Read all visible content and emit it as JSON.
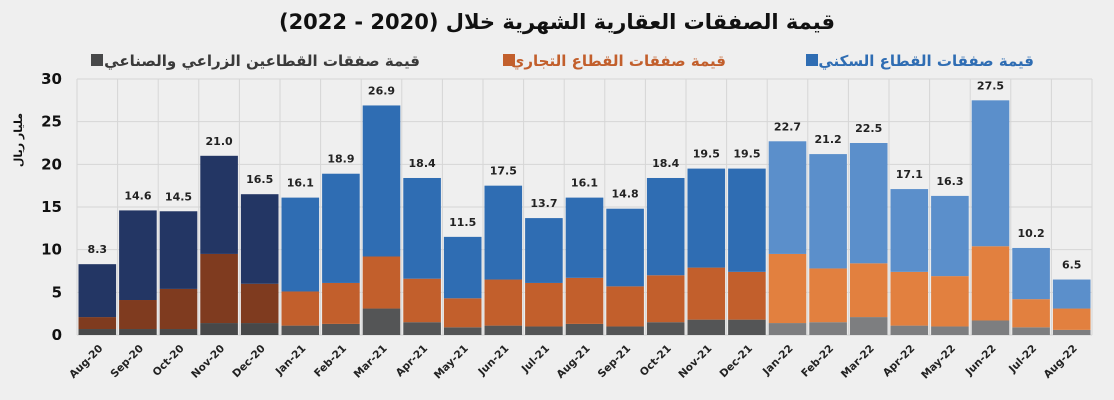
{
  "chart_data": {
    "type": "bar",
    "stacked": true,
    "title": "قيمة الصفقات العقارية الشهرية خلال (2020 - 2022)",
    "ylabel": "مليار ريال",
    "xlabel": "",
    "ylim": [
      0,
      30
    ],
    "yticks": [
      0,
      5,
      10,
      15,
      20,
      25,
      30
    ],
    "grid": true,
    "legend_position": "top",
    "categories": [
      "Aug-20",
      "Sep-20",
      "Oct-20",
      "Nov-20",
      "Dec-20",
      "Jan-21",
      "Feb-21",
      "Mar-21",
      "Apr-21",
      "May-21",
      "Jun-21",
      "Jul-21",
      "Aug-21",
      "Sep-21",
      "Oct-21",
      "Nov-21",
      "Dec-21",
      "Jan-22",
      "Feb-22",
      "Mar-22",
      "Apr-22",
      "May-22",
      "Jun-22",
      "Jul-22",
      "Aug-22"
    ],
    "totals": [
      "8.3",
      "14.6",
      "14.5",
      "21.0",
      "16.5",
      "16.1",
      "18.9",
      "26.9",
      "18.4",
      "11.5",
      "17.5",
      "13.7",
      "16.1",
      "14.8",
      "18.4",
      "19.5",
      "19.5",
      "22.7",
      "21.2",
      "22.5",
      "17.1",
      "16.3",
      "27.5",
      "10.2",
      "6.5"
    ],
    "series": [
      {
        "name": "قيمة صفقات القطاعين الزراعي والصناعي",
        "key": "agri_industrial",
        "values": [
          0.7,
          0.7,
          0.7,
          1.4,
          1.4,
          1.1,
          1.3,
          3.1,
          1.5,
          0.9,
          1.1,
          1.0,
          1.3,
          1.0,
          1.5,
          1.8,
          1.8,
          1.4,
          1.5,
          2.1,
          1.1,
          1.0,
          1.7,
          0.9,
          0.6
        ],
        "colors_by_year": {
          "2020": "#474849",
          "2021": "#545556",
          "2022": "#7d7e80"
        }
      },
      {
        "name": "قيمة صفقات القطاع التجاري",
        "key": "commercial",
        "values": [
          1.4,
          3.4,
          4.7,
          8.1,
          4.6,
          4.0,
          4.8,
          6.1,
          5.1,
          3.4,
          5.4,
          5.1,
          5.4,
          4.7,
          5.5,
          6.1,
          5.6,
          8.1,
          6.3,
          6.3,
          6.3,
          5.9,
          8.7,
          3.3,
          2.5
        ],
        "colors_by_year": {
          "2020": "#7f3b1f",
          "2021": "#c25f2c",
          "2022": "#e2803f"
        }
      },
      {
        "name": "قيمة صفقات القطاع السكني",
        "key": "residential",
        "values": [
          6.2,
          10.5,
          9.1,
          11.5,
          10.5,
          11.0,
          12.8,
          17.7,
          11.8,
          7.2,
          11.0,
          7.6,
          9.4,
          9.1,
          11.4,
          11.6,
          12.1,
          13.2,
          13.4,
          14.1,
          9.7,
          9.4,
          17.1,
          6.0,
          3.4
        ],
        "colors_by_year": {
          "2020": "#233664",
          "2021": "#2f6db3",
          "2022": "#5b8fcb"
        }
      }
    ],
    "legend_text_colors": {
      "agri_industrial": "#3a3a3a",
      "commercial": "#c25f2c",
      "residential": "#2f6db3"
    }
  }
}
